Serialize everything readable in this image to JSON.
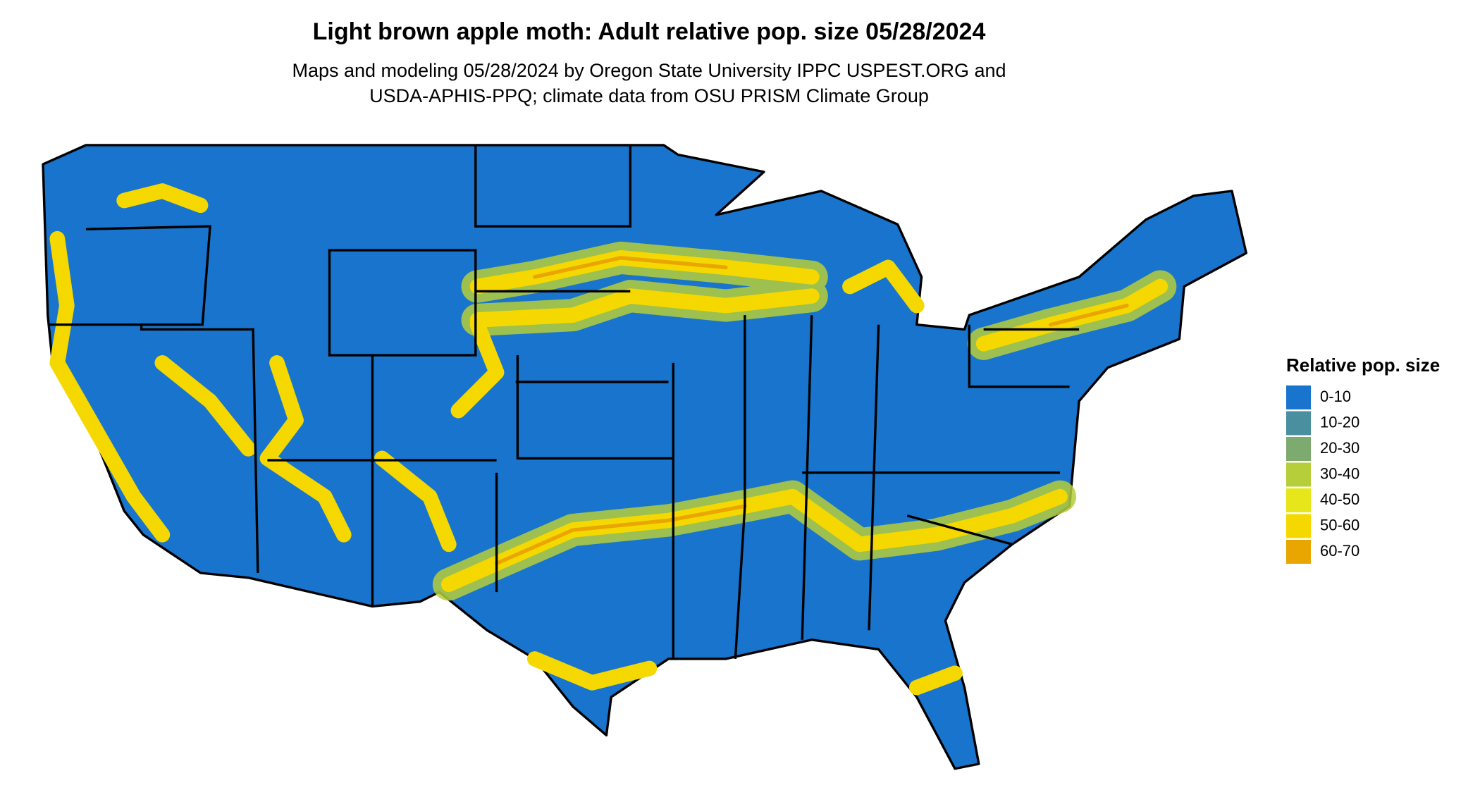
{
  "title": "Light brown apple moth: Adult relative pop. size 05/28/2024",
  "subtitle": [
    "Maps and modeling 05/28/2024 by Oregon State University IPPC USPEST.ORG and",
    "USDA-APHIS-PPQ; climate data from OSU PRISM Climate Group"
  ],
  "legend": {
    "title": "Relative pop. size",
    "items": [
      {
        "label": "0-10",
        "color": "#1874CD"
      },
      {
        "label": "10-20",
        "color": "#4A8FA0"
      },
      {
        "label": "20-30",
        "color": "#7DAA6E"
      },
      {
        "label": "30-40",
        "color": "#B5CE3A"
      },
      {
        "label": "40-50",
        "color": "#E6E61A"
      },
      {
        "label": "50-60",
        "color": "#F5D800"
      },
      {
        "label": "60-70",
        "color": "#EAA600"
      }
    ]
  }
}
